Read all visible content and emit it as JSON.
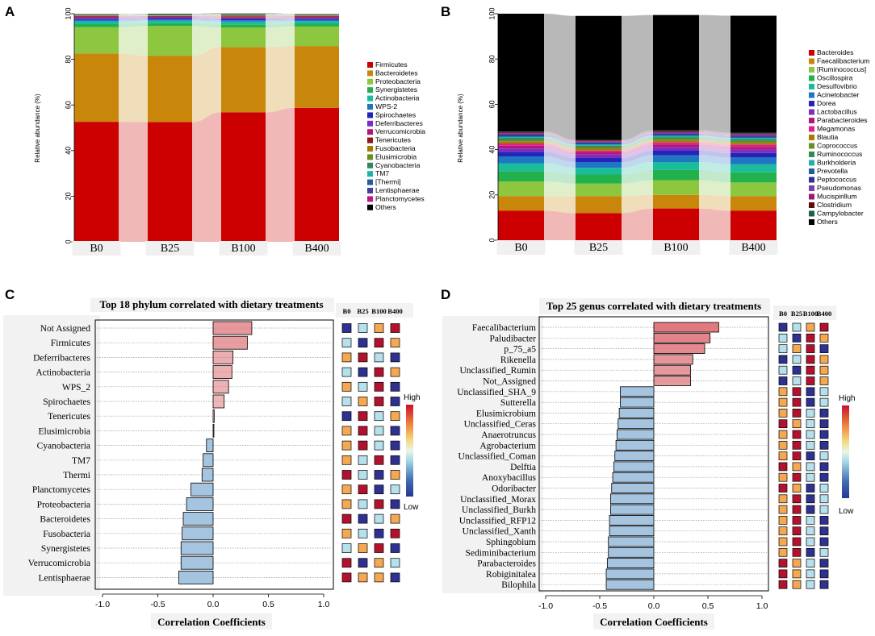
{
  "colors": {
    "high": "#c8102e",
    "mid": "#dcf0f5",
    "low": "#283593",
    "posbar": "#e07a7f",
    "negbar": "#a5c4e0",
    "stripe": "#c4c4c4",
    "heat_dark_blue": "#2e3192",
    "heat_light_blue": "#b5e0ec",
    "heat_orange": "#f5a852",
    "heat_red": "#b3122e"
  },
  "chart_data": [
    {
      "panel": "A",
      "type": "area",
      "layout": "stacked",
      "ylabel": "Relative abundance (%)",
      "ylim": [
        0,
        100
      ],
      "yticks": [
        "0",
        "20",
        "40",
        "60",
        "80",
        "100"
      ],
      "categories": [
        "B0",
        "B25",
        "B100",
        "B400"
      ],
      "legend": "right",
      "series": [
        {
          "name": "Firmicutes",
          "color": "#cc0000",
          "values": [
            52.6,
            52.5,
            56.8,
            58.7
          ]
        },
        {
          "name": "Bacteroidetes",
          "color": "#c8860a",
          "values": [
            30.0,
            29.1,
            28.6,
            27.1
          ]
        },
        {
          "name": "Proteobacteria",
          "color": "#8dc63f",
          "values": [
            11.5,
            13.0,
            8.6,
            8.6
          ]
        },
        {
          "name": "Synergistetes",
          "color": "#22b14c",
          "values": [
            1.3,
            1.2,
            1.3,
            1.2
          ]
        },
        {
          "name": "Actinobacteria",
          "color": "#1abc9c",
          "values": [
            1.2,
            1.1,
            1.2,
            1.1
          ]
        },
        {
          "name": "WPS-2",
          "color": "#1f77c4",
          "values": [
            0.6,
            0.6,
            0.6,
            0.5
          ]
        },
        {
          "name": "Spirochaetes",
          "color": "#2424b8",
          "values": [
            0.6,
            0.5,
            0.6,
            0.6
          ]
        },
        {
          "name": "Deferribacteres",
          "color": "#7b2fbe",
          "values": [
            0.4,
            0.4,
            0.4,
            0.4
          ]
        },
        {
          "name": "Verrucomicrobia",
          "color": "#b0177d",
          "values": [
            0.4,
            0.3,
            0.4,
            0.4
          ]
        },
        {
          "name": "Tenericutes",
          "color": "#8b1a1a",
          "values": [
            0.3,
            0.3,
            0.3,
            0.3
          ]
        },
        {
          "name": "Fusobacteria",
          "color": "#a67c00",
          "values": [
            0.3,
            0.2,
            0.3,
            0.3
          ]
        },
        {
          "name": "Elusimicrobia",
          "color": "#6b8e23",
          "values": [
            0.2,
            0.2,
            0.2,
            0.2
          ]
        },
        {
          "name": "Cyanobacteria",
          "color": "#2e8b57",
          "values": [
            0.2,
            0.1,
            0.2,
            0.2
          ]
        },
        {
          "name": "TM7",
          "color": "#20b2aa",
          "values": [
            0.1,
            0.1,
            0.1,
            0.1
          ]
        },
        {
          "name": "[Thermi]",
          "color": "#1f5f9e",
          "values": [
            0.1,
            0.1,
            0.1,
            0.1
          ]
        },
        {
          "name": "Lentisphaerae",
          "color": "#4b3b9e",
          "values": [
            0.1,
            0.1,
            0.1,
            0.1
          ]
        },
        {
          "name": "Planctomycetes",
          "color": "#c71585",
          "values": [
            0.1,
            0.0,
            0.1,
            0.1
          ]
        },
        {
          "name": "Others",
          "color": "#000000",
          "values": [
            0.0,
            0.2,
            0.2,
            0.0
          ]
        }
      ]
    },
    {
      "panel": "B",
      "type": "area",
      "layout": "stacked",
      "ylabel": "Relative abundance (%)",
      "ylim": [
        0,
        100
      ],
      "yticks": [
        "0",
        "20",
        "40",
        "60",
        "80",
        "100"
      ],
      "categories": [
        "B0",
        "B25",
        "B100",
        "B400"
      ],
      "legend": "right",
      "series": [
        {
          "name": "Bacteroides",
          "color": "#cc0000",
          "values": [
            13.0,
            12.0,
            14.0,
            13.0
          ]
        },
        {
          "name": "Faecalibacterium",
          "color": "#c8860a",
          "values": [
            6.5,
            7.5,
            6.0,
            6.5
          ]
        },
        {
          "name": "[Ruminococcus]",
          "color": "#8dc63f",
          "values": [
            6.5,
            5.5,
            6.5,
            6.0
          ]
        },
        {
          "name": "Oscillospira",
          "color": "#22b14c",
          "values": [
            4.5,
            4.0,
            4.5,
            4.5
          ]
        },
        {
          "name": "Desulfovibrio",
          "color": "#1abc9c",
          "values": [
            3.5,
            3.0,
            3.5,
            3.5
          ]
        },
        {
          "name": "Acinetobacter",
          "color": "#1f77c4",
          "values": [
            3.0,
            2.5,
            3.0,
            3.0
          ]
        },
        {
          "name": "Dorea",
          "color": "#2424b8",
          "values": [
            2.0,
            1.8,
            2.0,
            2.0
          ]
        },
        {
          "name": "Lactobacillus",
          "color": "#7b2fbe",
          "values": [
            1.5,
            1.5,
            1.5,
            1.5
          ]
        },
        {
          "name": "Parabacteroides",
          "color": "#b0177d",
          "values": [
            1.2,
            1.0,
            1.2,
            1.2
          ]
        },
        {
          "name": "Megamonas",
          "color": "#e0218a",
          "values": [
            1.0,
            0.8,
            1.0,
            1.0
          ]
        },
        {
          "name": "Blautia",
          "color": "#a67c00",
          "values": [
            0.8,
            0.8,
            0.8,
            0.8
          ]
        },
        {
          "name": "Coprococcus",
          "color": "#6b8e23",
          "values": [
            0.8,
            0.7,
            0.8,
            0.8
          ]
        },
        {
          "name": "Ruminococcus",
          "color": "#2e8b57",
          "values": [
            0.7,
            0.6,
            0.7,
            0.7
          ]
        },
        {
          "name": "Burkholderia",
          "color": "#20b2aa",
          "values": [
            0.6,
            0.5,
            0.6,
            0.6
          ]
        },
        {
          "name": "Prevotella",
          "color": "#1f5f9e",
          "values": [
            0.5,
            0.5,
            0.5,
            0.5
          ]
        },
        {
          "name": "Peptococcus",
          "color": "#2e3192",
          "values": [
            0.5,
            0.4,
            0.5,
            0.5
          ]
        },
        {
          "name": "Pseudomonas",
          "color": "#7a3fa8",
          "values": [
            0.4,
            0.4,
            0.4,
            0.4
          ]
        },
        {
          "name": "Mucispirillum",
          "color": "#a0186e",
          "values": [
            0.4,
            0.3,
            0.4,
            0.4
          ]
        },
        {
          "name": "Clostridium",
          "color": "#5c0a0a",
          "values": [
            0.3,
            0.3,
            0.3,
            0.3
          ]
        },
        {
          "name": "Campylobacter",
          "color": "#1b5e50",
          "values": [
            0.3,
            0.2,
            0.3,
            0.3
          ]
        },
        {
          "name": "Others",
          "color": "#000000",
          "values": [
            52.0,
            54.7,
            50.9,
            51.6
          ]
        }
      ]
    },
    {
      "panel": "C",
      "type": "bar",
      "orientation": "horizontal",
      "title": "Top 18 phylum correlated with dietary treatments",
      "xlabel": "Correlation Coefficients",
      "xlim": [
        -1.0,
        1.0
      ],
      "xticks": [
        "-1.0",
        "-0.5",
        "0.0",
        "0.5",
        "1.0"
      ],
      "heatmap_columns": [
        "B0",
        "B25",
        "B100",
        "B400"
      ],
      "scale_labels": {
        "high": "High",
        "low": "Low"
      },
      "categories": [
        "Not Assigned",
        "Firmicutes",
        "Deferribacteres",
        "Actinobacteria",
        "WPS_2",
        "Spirochaetes",
        "Tenericutes",
        "Elusimicrobia",
        "Cyanobacteria",
        "TM7",
        "Thermi",
        "Planctomycetes",
        "Proteobacteria",
        "Bacteroidetes",
        "Fusobacteria",
        "Synergistetes",
        "Verrucomicrobia",
        "Lentisphaerae"
      ],
      "values": [
        0.35,
        0.31,
        0.18,
        0.17,
        0.14,
        0.1,
        0.01,
        0.0,
        -0.06,
        -0.09,
        -0.1,
        -0.2,
        -0.24,
        -0.27,
        -0.28,
        -0.29,
        -0.29,
        -0.31
      ],
      "heatmap": [
        [
          0,
          1,
          2,
          3
        ],
        [
          1,
          0,
          3,
          2
        ],
        [
          2,
          3,
          1,
          0
        ],
        [
          1,
          0,
          3,
          2
        ],
        [
          2,
          1,
          3,
          0
        ],
        [
          1,
          2,
          3,
          0
        ],
        [
          0,
          3,
          1,
          2
        ],
        [
          2,
          3,
          1,
          0
        ],
        [
          2,
          3,
          1,
          0
        ],
        [
          2,
          1,
          3,
          0
        ],
        [
          3,
          1,
          0,
          2
        ],
        [
          2,
          3,
          0,
          1
        ],
        [
          2,
          1,
          3,
          0
        ],
        [
          3,
          0,
          1,
          2
        ],
        [
          2,
          1,
          0,
          3
        ],
        [
          1,
          2,
          3,
          0
        ],
        [
          3,
          0,
          2,
          1
        ],
        [
          3,
          2,
          2,
          0
        ]
      ]
    },
    {
      "panel": "D",
      "type": "bar",
      "orientation": "horizontal",
      "title": "Top 25 genus correlated with dietary treatments",
      "xlabel": "Correlation Coefficients",
      "xlim": [
        -1.0,
        1.0
      ],
      "xticks": [
        "-1.0",
        "-0.5",
        "0.0",
        "0.5",
        "1.0"
      ],
      "heatmap_columns": [
        "B0",
        "B25",
        "B100",
        "B400"
      ],
      "scale_labels": {
        "high": "High",
        "low": "Low"
      },
      "categories": [
        "Faecalibacterium",
        "Paludibacter",
        "p_75_a5",
        "Rikenella",
        "Unclassified_Rumin",
        "Not_Assigned",
        "Unclassified_SHA_9",
        "Sutterella",
        "Elusimicrobium",
        "Unclassified_Ceras",
        "Anaerotruncus",
        "Agrobacterium",
        "Unclassified_Coman",
        "Delftia",
        "Anoxybacillus",
        "Odoribacter",
        "Unclassified_Morax",
        "Unclassified_Burkh",
        "Unclassified_RFP12",
        "Unclassified_Xanth",
        "Sphingobium",
        "Sediminibacterium",
        "Parabacteroides",
        "Robiginitalea",
        "Bilophila"
      ],
      "values": [
        0.6,
        0.52,
        0.47,
        0.36,
        0.34,
        0.34,
        -0.31,
        -0.31,
        -0.32,
        -0.33,
        -0.34,
        -0.35,
        -0.36,
        -0.37,
        -0.38,
        -0.39,
        -0.4,
        -0.4,
        -0.41,
        -0.41,
        -0.42,
        -0.42,
        -0.43,
        -0.44,
        -0.44
      ],
      "heatmap": [
        [
          0,
          1,
          2,
          3
        ],
        [
          1,
          0,
          3,
          2
        ],
        [
          1,
          2,
          3,
          0
        ],
        [
          0,
          1,
          3,
          2
        ],
        [
          1,
          0,
          3,
          2
        ],
        [
          0,
          1,
          3,
          2
        ],
        [
          2,
          3,
          0,
          1
        ],
        [
          2,
          3,
          0,
          1
        ],
        [
          2,
          3,
          1,
          0
        ],
        [
          3,
          2,
          1,
          0
        ],
        [
          2,
          3,
          1,
          0
        ],
        [
          2,
          3,
          1,
          0
        ],
        [
          2,
          3,
          0,
          1
        ],
        [
          3,
          2,
          1,
          0
        ],
        [
          2,
          3,
          1,
          0
        ],
        [
          3,
          2,
          0,
          1
        ],
        [
          2,
          3,
          0,
          1
        ],
        [
          2,
          3,
          0,
          1
        ],
        [
          2,
          3,
          1,
          0
        ],
        [
          2,
          3,
          1,
          0
        ],
        [
          2,
          3,
          1,
          0
        ],
        [
          2,
          3,
          0,
          1
        ],
        [
          3,
          2,
          1,
          0
        ],
        [
          3,
          2,
          1,
          0
        ],
        [
          3,
          2,
          1,
          0
        ]
      ]
    }
  ]
}
